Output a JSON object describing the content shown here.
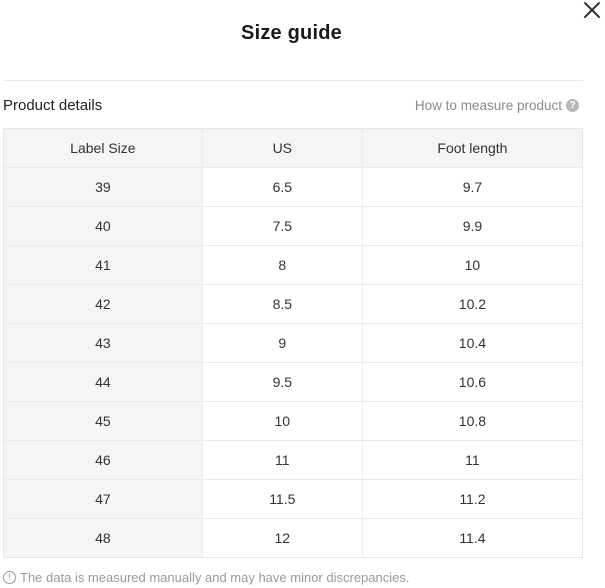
{
  "dialog": {
    "title": "Size guide",
    "close_label": "×"
  },
  "section": {
    "label": "Product details",
    "measure_link": "How to measure product",
    "help_icon": "?"
  },
  "table": {
    "headers": [
      "Label Size",
      "US",
      "Foot length"
    ],
    "rows": [
      [
        "39",
        "6.5",
        "9.7"
      ],
      [
        "40",
        "7.5",
        "9.9"
      ],
      [
        "41",
        "8",
        "10"
      ],
      [
        "42",
        "8.5",
        "10.2"
      ],
      [
        "43",
        "9",
        "10.4"
      ],
      [
        "44",
        "9.5",
        "10.6"
      ],
      [
        "45",
        "10",
        "10.8"
      ],
      [
        "46",
        "11",
        "11"
      ],
      [
        "47",
        "11.5",
        "11.2"
      ],
      [
        "48",
        "12",
        "11.4"
      ]
    ]
  },
  "footnote": {
    "icon": "!",
    "text": "The data is measured manually and may have minor discrepancies."
  },
  "colors": {
    "header_bg": "#f5f5f5",
    "border": "#ececec",
    "muted_text": "#9a9a9a"
  }
}
